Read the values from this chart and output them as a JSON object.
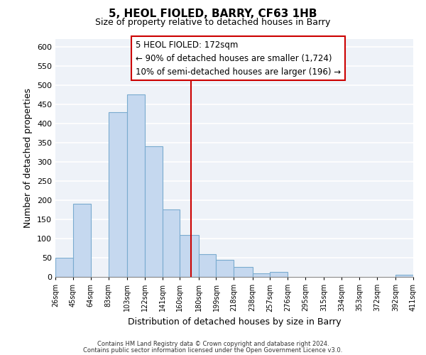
{
  "title": "5, HEOL FIOLED, BARRY, CF63 1HB",
  "subtitle": "Size of property relative to detached houses in Barry",
  "xlabel": "Distribution of detached houses by size in Barry",
  "ylabel": "Number of detached properties",
  "bar_color": "#c5d8ef",
  "bar_edge_color": "#7aabcf",
  "vline_color": "#cc0000",
  "vline_x": 172,
  "annotation_line1": "5 HEOL FIOLED: 172sqm",
  "annotation_line2": "← 90% of detached houses are smaller (1,724)",
  "annotation_line3": "10% of semi-detached houses are larger (196) →",
  "bin_edges": [
    26,
    45,
    64,
    83,
    103,
    122,
    141,
    160,
    180,
    199,
    218,
    238,
    257,
    276,
    295,
    315,
    334,
    353,
    372,
    392,
    411
  ],
  "bin_heights": [
    50,
    190,
    0,
    430,
    475,
    340,
    175,
    110,
    60,
    44,
    25,
    10,
    13,
    0,
    0,
    0,
    0,
    0,
    0,
    5
  ],
  "ylim": [
    0,
    620
  ],
  "yticks": [
    0,
    50,
    100,
    150,
    200,
    250,
    300,
    350,
    400,
    450,
    500,
    550,
    600
  ],
  "footnote1": "Contains HM Land Registry data © Crown copyright and database right 2024.",
  "footnote2": "Contains public sector information licensed under the Open Government Licence v3.0.",
  "background_color": "#eef2f8",
  "grid_color": "#ffffff",
  "annotation_box_edge": "#cc0000",
  "annotation_box_face": "#ffffff"
}
